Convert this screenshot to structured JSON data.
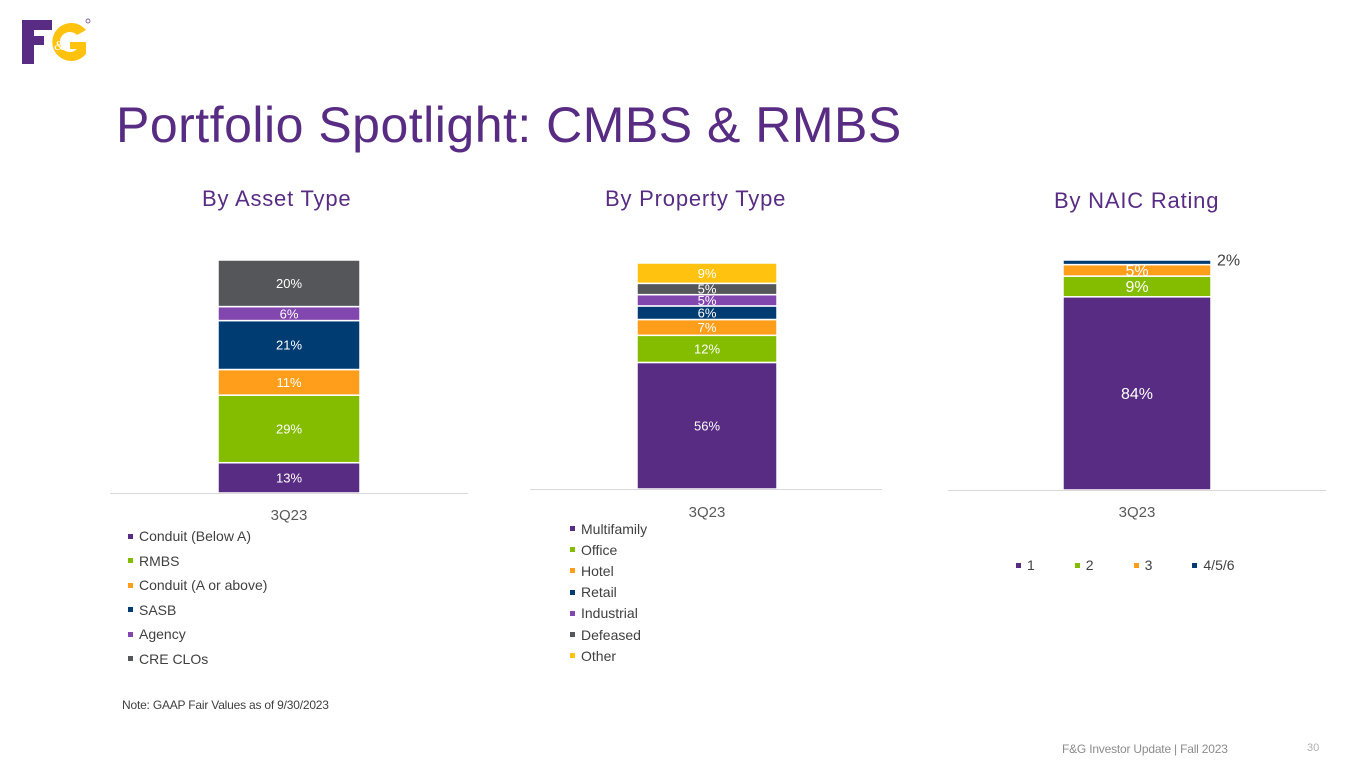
{
  "brand": {
    "logo_text": "F&G"
  },
  "page_title": "Portfolio Spotlight: CMBS & RMBS",
  "note": "Note: GAAP Fair Values as of 9/30/2023",
  "footer": {
    "text": "F&G Investor Update | Fall 2023",
    "page_number": "30"
  },
  "colors": {
    "purple": "#582C83",
    "green": "#84BD00",
    "orange": "#FF9E1B",
    "navy": "#003B71",
    "violet": "#8246AF",
    "gray": "#54565A",
    "yellow": "#FFC20E"
  },
  "chart_data": [
    {
      "type": "bar",
      "stacked": true,
      "title": "By Asset Type",
      "categories": [
        "3Q23"
      ],
      "series": [
        {
          "name": "Conduit (Below A)",
          "values": [
            13
          ],
          "label": "13%",
          "color": "#582C83"
        },
        {
          "name": "RMBS",
          "values": [
            29
          ],
          "label": "29%",
          "color": "#84BD00"
        },
        {
          "name": "Conduit (A or above)",
          "values": [
            11
          ],
          "label": "11%",
          "color": "#FF9E1B"
        },
        {
          "name": "SASB",
          "values": [
            21
          ],
          "label": "21%",
          "color": "#003B71"
        },
        {
          "name": "Agency",
          "values": [
            6
          ],
          "label": "6%",
          "color": "#8246AF"
        },
        {
          "name": "CRE CLOs",
          "values": [
            20
          ],
          "label": "20%",
          "color": "#54565A"
        }
      ],
      "legend": "bottom"
    },
    {
      "type": "bar",
      "stacked": true,
      "title": "By Property Type",
      "categories": [
        "3Q23"
      ],
      "series": [
        {
          "name": "Multifamily",
          "values": [
            56
          ],
          "label": "56%",
          "color": "#582C83"
        },
        {
          "name": "Office",
          "values": [
            12
          ],
          "label": "12%",
          "color": "#84BD00"
        },
        {
          "name": "Hotel",
          "values": [
            7
          ],
          "label": "7%",
          "color": "#FF9E1B"
        },
        {
          "name": "Retail",
          "values": [
            6
          ],
          "label": "6%",
          "color": "#003B71"
        },
        {
          "name": "Industrial",
          "values": [
            5
          ],
          "label": "5%",
          "color": "#8246AF"
        },
        {
          "name": "Defeased",
          "values": [
            5
          ],
          "label": "5%",
          "color": "#54565A"
        },
        {
          "name": "Other",
          "values": [
            9
          ],
          "label": "9%",
          "color": "#FFC20E"
        }
      ],
      "legend": "bottom"
    },
    {
      "type": "bar",
      "stacked": true,
      "title": "By NAIC Rating",
      "categories": [
        "3Q23"
      ],
      "series": [
        {
          "name": "1",
          "values": [
            84
          ],
          "label": "84%",
          "color": "#582C83"
        },
        {
          "name": "2",
          "values": [
            9
          ],
          "label": "9%",
          "color": "#84BD00"
        },
        {
          "name": "3",
          "values": [
            5
          ],
          "label": "5%",
          "color": "#FF9E1B"
        },
        {
          "name": "4/5/6",
          "values": [
            2
          ],
          "label": "2%",
          "color": "#003B71"
        }
      ],
      "legend": "bottom"
    }
  ]
}
